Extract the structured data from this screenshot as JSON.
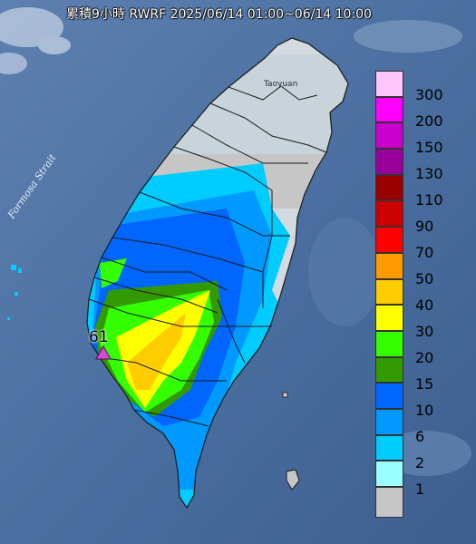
{
  "title": "累積9小時 RWRF 2025/06/14 01:00~06/14 10:00",
  "sea_label": "Formosa Strait",
  "city_label": "Taoyuan",
  "max_marker": {
    "value": "61",
    "color": "#d24bd2"
  },
  "legend": [
    {
      "label": "300",
      "color": "#ffc6fa"
    },
    {
      "label": "200",
      "color": "#ff00ff"
    },
    {
      "label": "150",
      "color": "#cc00cc"
    },
    {
      "label": "130",
      "color": "#990099"
    },
    {
      "label": "110",
      "color": "#990000"
    },
    {
      "label": "90",
      "color": "#cc0000"
    },
    {
      "label": "70",
      "color": "#ff0000"
    },
    {
      "label": "50",
      "color": "#ff9900"
    },
    {
      "label": "40",
      "color": "#ffcc00"
    },
    {
      "label": "30",
      "color": "#ffff00"
    },
    {
      "label": "20",
      "color": "#33ff00"
    },
    {
      "label": "15",
      "color": "#339900"
    },
    {
      "label": "10",
      "color": "#0066ff"
    },
    {
      "label": "6",
      "color": "#0099ff"
    },
    {
      "label": "2",
      "color": "#00ccff"
    },
    {
      "label": "1",
      "color": "#99ffff"
    },
    {
      "label": "",
      "color": "#c6c6c6"
    }
  ],
  "colors": {
    "sea": "#4a6fa0",
    "land": "#d4dbe0",
    "no_rain": "#c6c6c6",
    "boundary": "#1a1a1a"
  }
}
